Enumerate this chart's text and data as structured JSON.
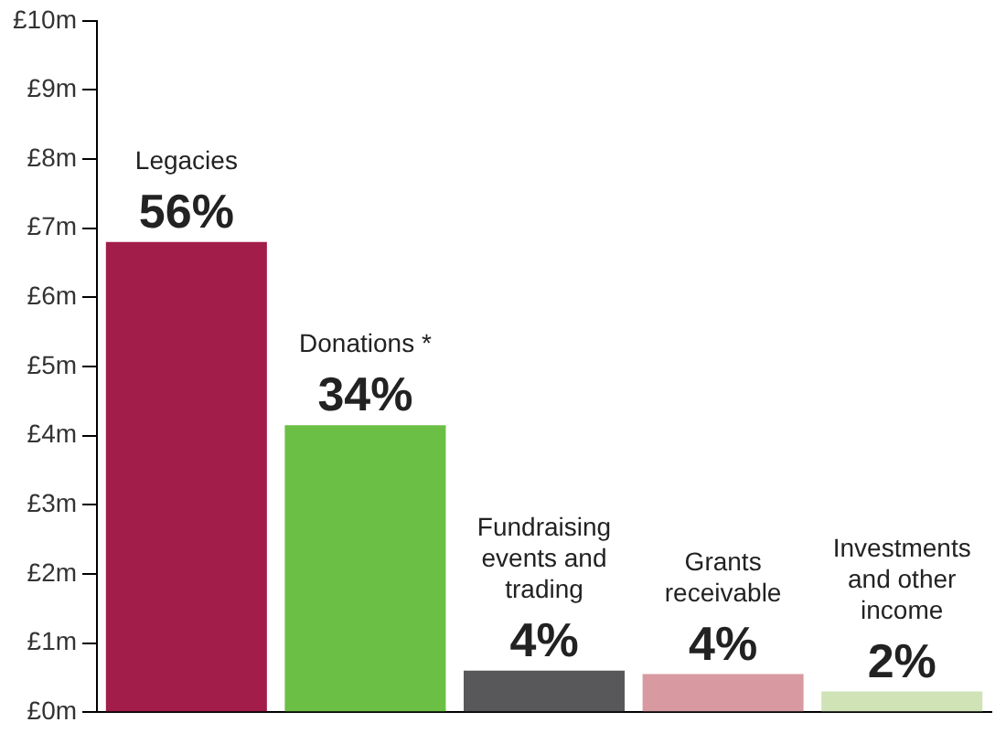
{
  "chart_data": {
    "type": "bar",
    "categories": [
      "Legacies",
      "Donations *",
      "Fundraising events and trading",
      "Grants receivable",
      "Investments and other income"
    ],
    "values": [
      6.8,
      4.15,
      0.6,
      0.55,
      0.3
    ],
    "colors": [
      "#a21d4a",
      "#6cbf45",
      "#58585a",
      "#d89aa0",
      "#cfe3b7"
    ],
    "annotations": [
      {
        "text": "56%",
        "x": "Legacies",
        "y": 6.8
      },
      {
        "text": "34%",
        "x": "Donations *",
        "y": 4.15
      },
      {
        "text": "4%",
        "x": "Fundraising events and trading",
        "y": 0.6
      },
      {
        "text": "4%",
        "x": "Grants receivable",
        "y": 0.55
      },
      {
        "text": "2%",
        "x": "Investments and other income",
        "y": 0.3
      }
    ],
    "ylim": [
      0,
      10
    ],
    "yticks": [
      {
        "value": 0,
        "label": "£0m"
      },
      {
        "value": 1,
        "label": "£1m"
      },
      {
        "value": 2,
        "label": "£2m"
      },
      {
        "value": 3,
        "label": "£3m"
      },
      {
        "value": 4,
        "label": "£4m"
      },
      {
        "value": 5,
        "label": "£5m"
      },
      {
        "value": 6,
        "label": "£6m"
      },
      {
        "value": 7,
        "label": "£7m"
      },
      {
        "value": 8,
        "label": "£8m"
      },
      {
        "value": 9,
        "label": "£9m"
      },
      {
        "value": 10,
        "label": "£10m"
      }
    ],
    "tick_labels": "y",
    "grid": false,
    "legend": false
  }
}
